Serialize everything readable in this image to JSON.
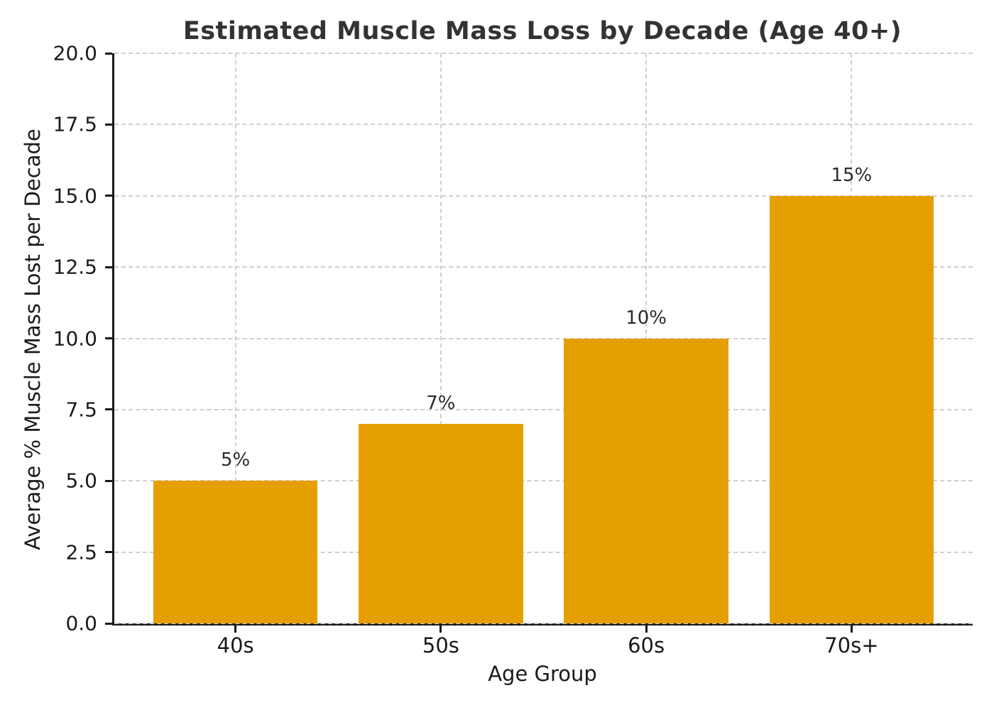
{
  "chart_data": {
    "type": "bar",
    "title": "Estimated Muscle Mass Loss by Decade (Age 40+)",
    "xlabel": "Age Group",
    "ylabel": "Average % Muscle Mass Lost per Decade",
    "categories": [
      "40s",
      "50s",
      "60s",
      "70s+"
    ],
    "values": [
      5,
      7,
      10,
      15
    ],
    "bar_labels": [
      "5%",
      "7%",
      "10%",
      "15%"
    ],
    "ylim": [
      0,
      20
    ],
    "yticks": [
      0,
      2.5,
      5,
      7.5,
      10,
      12.5,
      15,
      17.5,
      20
    ],
    "ytick_labels": [
      "0.0",
      "2.5",
      "5.0",
      "7.5",
      "10.0",
      "12.5",
      "15.0",
      "17.5",
      "20.0"
    ],
    "bar_color": "#E69F00",
    "grid": "dashed-both",
    "gridline_color": "#cfcfcf",
    "axis_color": "#1a1a1a",
    "title_color": "#333333",
    "bar_width_fraction": 0.8,
    "legend": "none"
  }
}
